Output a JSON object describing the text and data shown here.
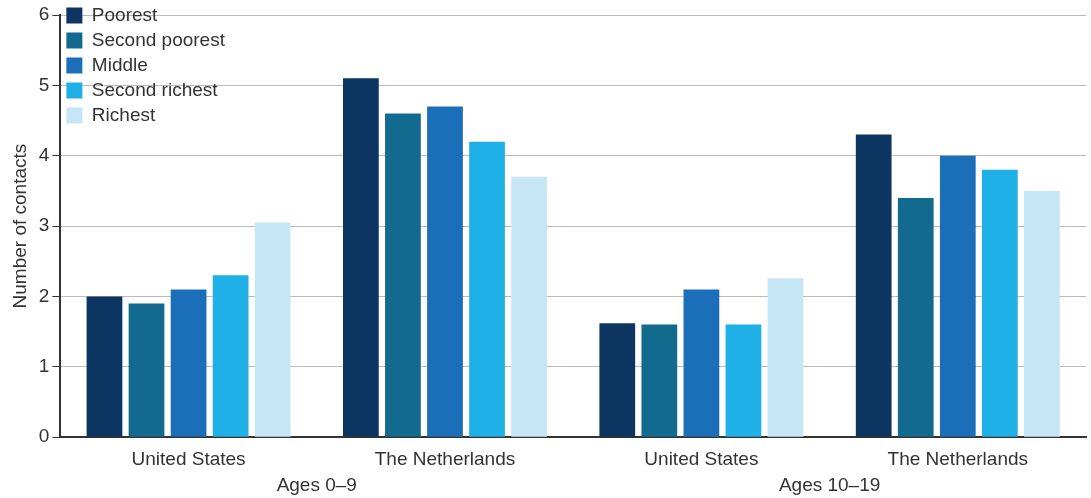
{
  "chart_data": {
    "type": "bar",
    "ylabel": "Number of contacts",
    "categories": [
      "United States",
      "The Netherlands",
      "United States",
      "The Netherlands"
    ],
    "series": [
      {
        "name": "Poorest",
        "color": "#0d3561",
        "values": [
          2.0,
          5.1,
          1.62,
          4.3
        ]
      },
      {
        "name": "Second poorest",
        "color": "#126a8e",
        "values": [
          1.9,
          4.6,
          1.6,
          3.4
        ]
      },
      {
        "name": "Middle",
        "color": "#1a6fb8",
        "values": [
          2.1,
          4.7,
          2.1,
          4.0
        ]
      },
      {
        "name": "Second richest",
        "color": "#1fb0e8",
        "values": [
          2.3,
          4.2,
          1.6,
          3.8
        ]
      },
      {
        "name": "Richest",
        "color": "#c6e6f6",
        "values": [
          3.05,
          3.7,
          2.26,
          3.5
        ]
      }
    ],
    "annotations": [
      "Ages 0–9",
      "Ages 10–19"
    ],
    "ylim": [
      0,
      6
    ],
    "yticks": [
      0,
      1,
      2,
      3,
      4,
      5,
      6
    ],
    "grid": "y",
    "legend": "top left"
  }
}
